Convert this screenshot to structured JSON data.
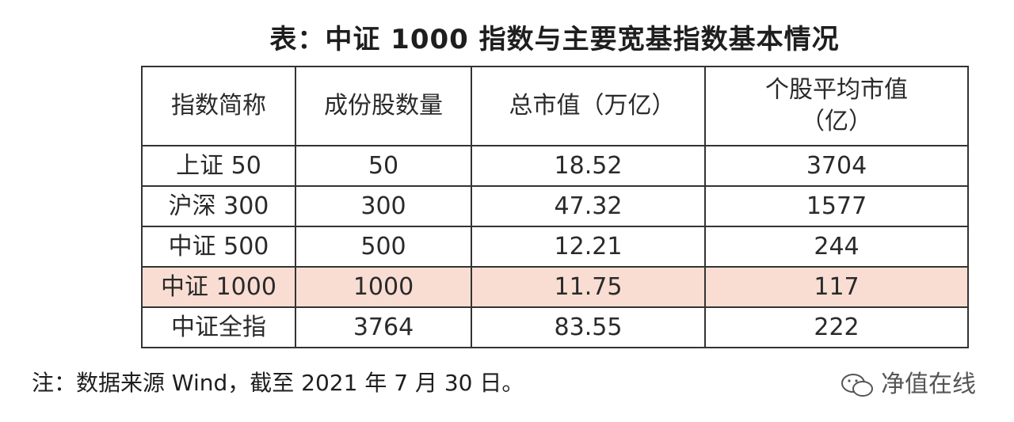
{
  "title": "表：中证 1000 指数与主要宽基指数基本情况",
  "table": {
    "header": [
      "指数简称",
      "成份股数量",
      "总市值（万亿）",
      "个股平均市值（亿）"
    ],
    "rows": [
      [
        "上证 50",
        50,
        18.52,
        3704
      ],
      [
        "沪深 300",
        300,
        47.32,
        1577
      ],
      [
        "中证 500",
        500,
        12.21,
        244
      ],
      [
        "中证 1000",
        1000,
        11.75,
        117
      ],
      [
        "中证全指",
        3764,
        83.55,
        222
      ]
    ]
  },
  "note": "注：数据来源 Wind，截至 2021 年 7 月 30 日。",
  "watermark": "净值在线"
}
